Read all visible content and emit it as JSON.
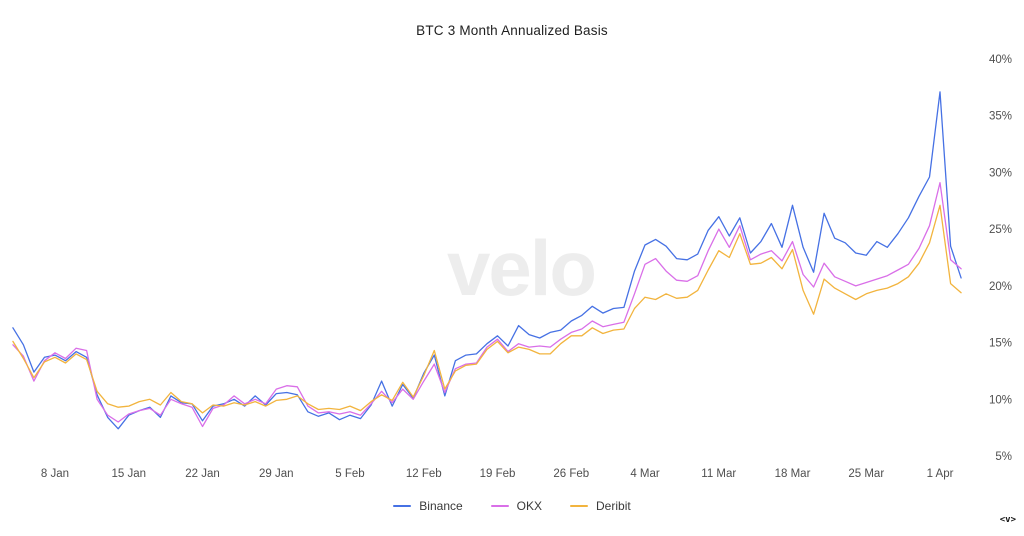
{
  "page": {
    "title": "BTC 3 Month Annualized Basis",
    "watermark": "velo",
    "logo_mark": "<v>"
  },
  "chart_data": {
    "type": "line",
    "title": "BTC 3 Month Annualized Basis",
    "ylabel": "",
    "xlabel": "",
    "y_unit": "%",
    "ylim": [
      5,
      40
    ],
    "y_ticks": [
      40,
      35,
      30,
      25,
      20,
      15,
      10,
      5
    ],
    "grid": false,
    "legend_position": "bottom",
    "x_tick_labels": [
      "8 Jan",
      "15 Jan",
      "22 Jan",
      "29 Jan",
      "5 Feb",
      "12 Feb",
      "19 Feb",
      "26 Feb",
      "4 Mar",
      "11 Mar",
      "18 Mar",
      "25 Mar",
      "1 Apr"
    ],
    "x_tick_day_index": [
      4,
      11,
      18,
      25,
      32,
      39,
      46,
      53,
      60,
      67,
      74,
      81,
      88
    ],
    "x": [
      "4 Jan",
      "5 Jan",
      "6 Jan",
      "7 Jan",
      "8 Jan",
      "9 Jan",
      "10 Jan",
      "11 Jan",
      "12 Jan",
      "13 Jan",
      "14 Jan",
      "15 Jan",
      "16 Jan",
      "17 Jan",
      "18 Jan",
      "19 Jan",
      "20 Jan",
      "21 Jan",
      "22 Jan",
      "23 Jan",
      "24 Jan",
      "25 Jan",
      "26 Jan",
      "27 Jan",
      "28 Jan",
      "29 Jan",
      "30 Jan",
      "31 Jan",
      "1 Feb",
      "2 Feb",
      "3 Feb",
      "4 Feb",
      "5 Feb",
      "6 Feb",
      "7 Feb",
      "8 Feb",
      "9 Feb",
      "10 Feb",
      "11 Feb",
      "12 Feb",
      "13 Feb",
      "14 Feb",
      "15 Feb",
      "16 Feb",
      "17 Feb",
      "18 Feb",
      "19 Feb",
      "20 Feb",
      "21 Feb",
      "22 Feb",
      "23 Feb",
      "24 Feb",
      "25 Feb",
      "26 Feb",
      "27 Feb",
      "28 Feb",
      "29 Feb",
      "1 Mar",
      "2 Mar",
      "3 Mar",
      "4 Mar",
      "5 Mar",
      "6 Mar",
      "7 Mar",
      "8 Mar",
      "9 Mar",
      "10 Mar",
      "11 Mar",
      "12 Mar",
      "13 Mar",
      "14 Mar",
      "15 Mar",
      "16 Mar",
      "17 Mar",
      "18 Mar",
      "19 Mar",
      "20 Mar",
      "21 Mar",
      "22 Mar",
      "23 Mar",
      "24 Mar",
      "25 Mar",
      "26 Mar",
      "27 Mar",
      "28 Mar",
      "29 Mar",
      "30 Mar",
      "31 Mar",
      "1 Apr",
      "2 Apr",
      "3 Apr"
    ],
    "series": [
      {
        "name": "Binance",
        "color": "#4671e4",
        "values": [
          16.3,
          14.8,
          12.4,
          13.7,
          13.9,
          13.4,
          14.2,
          13.7,
          10.4,
          8.4,
          7.4,
          8.6,
          9.0,
          9.3,
          8.4,
          10.3,
          9.7,
          9.6,
          8.1,
          9.4,
          9.6,
          10.0,
          9.4,
          10.3,
          9.5,
          10.5,
          10.6,
          10.4,
          8.9,
          8.5,
          8.8,
          8.2,
          8.6,
          8.3,
          9.5,
          11.6,
          9.4,
          11.3,
          10.1,
          12.3,
          13.9,
          10.3,
          13.4,
          13.9,
          14.0,
          14.9,
          15.6,
          14.7,
          16.5,
          15.7,
          15.4,
          15.9,
          16.1,
          16.9,
          17.4,
          18.2,
          17.6,
          18.0,
          18.1,
          21.3,
          23.6,
          24.1,
          23.5,
          22.4,
          22.3,
          22.8,
          24.9,
          26.1,
          24.4,
          26.0,
          22.9,
          23.9,
          25.5,
          23.4,
          27.1,
          23.4,
          21.2,
          26.4,
          24.2,
          23.8,
          22.9,
          22.7,
          23.9,
          23.4,
          24.6,
          26.0,
          27.9,
          29.6,
          37.1,
          23.5,
          20.7
        ]
      },
      {
        "name": "OKX",
        "color": "#d96fe8",
        "values": [
          14.8,
          13.8,
          11.6,
          13.4,
          14.1,
          13.6,
          14.5,
          14.3,
          10.0,
          8.6,
          8.0,
          8.7,
          9.0,
          9.2,
          8.6,
          10.0,
          9.6,
          9.3,
          7.6,
          9.2,
          9.5,
          10.3,
          9.6,
          10.0,
          9.6,
          10.9,
          11.2,
          11.1,
          9.4,
          8.8,
          8.9,
          8.7,
          8.9,
          8.6,
          9.6,
          10.7,
          9.7,
          10.9,
          10.0,
          11.6,
          13.1,
          10.6,
          12.7,
          13.1,
          13.2,
          14.6,
          15.3,
          14.2,
          14.9,
          14.6,
          14.7,
          14.6,
          15.3,
          15.9,
          16.2,
          16.9,
          16.4,
          16.6,
          16.8,
          19.3,
          21.9,
          22.4,
          21.3,
          20.5,
          20.4,
          20.9,
          23.1,
          25.0,
          23.4,
          25.3,
          22.3,
          22.8,
          23.1,
          22.2,
          23.9,
          21.0,
          19.9,
          22.0,
          20.8,
          20.4,
          20.0,
          20.3,
          20.6,
          20.9,
          21.4,
          21.9,
          23.3,
          25.3,
          29.1,
          22.3,
          21.5
        ]
      },
      {
        "name": "Deribit",
        "color": "#f2b43e",
        "values": [
          15.1,
          13.6,
          11.9,
          13.3,
          13.7,
          13.2,
          14.0,
          13.5,
          10.7,
          9.6,
          9.3,
          9.4,
          9.8,
          10.0,
          9.5,
          10.6,
          9.8,
          9.6,
          8.8,
          9.5,
          9.4,
          9.7,
          9.5,
          9.8,
          9.4,
          9.9,
          10.0,
          10.3,
          9.6,
          9.1,
          9.2,
          9.1,
          9.4,
          9.0,
          9.8,
          10.4,
          9.9,
          11.5,
          10.2,
          12.1,
          14.3,
          10.9,
          12.5,
          13.0,
          13.1,
          14.4,
          15.1,
          14.1,
          14.6,
          14.4,
          14.0,
          14.0,
          14.9,
          15.6,
          15.6,
          16.3,
          15.8,
          16.1,
          16.2,
          18.0,
          19.0,
          18.8,
          19.3,
          18.9,
          19.0,
          19.6,
          21.4,
          23.1,
          22.5,
          24.6,
          21.9,
          22.0,
          22.5,
          21.5,
          23.2,
          19.6,
          17.5,
          20.6,
          19.8,
          19.3,
          18.8,
          19.3,
          19.6,
          19.8,
          20.2,
          20.8,
          22.0,
          23.8,
          27.1,
          20.2,
          19.4
        ]
      }
    ]
  }
}
